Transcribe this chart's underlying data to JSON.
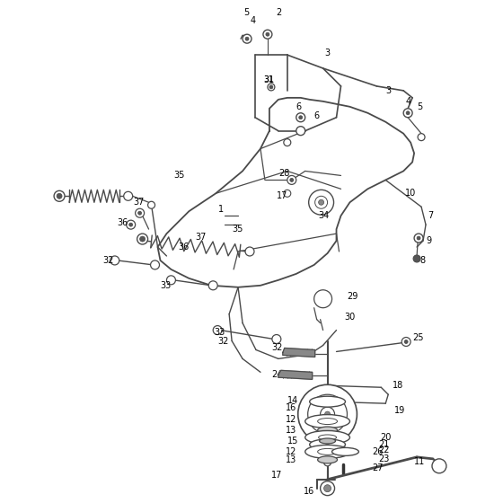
{
  "bg_color": "#ffffff",
  "line_color": "#4a4a4a",
  "text_color": "#000000",
  "fig_width": 5.6,
  "fig_height": 5.6,
  "dpi": 100
}
